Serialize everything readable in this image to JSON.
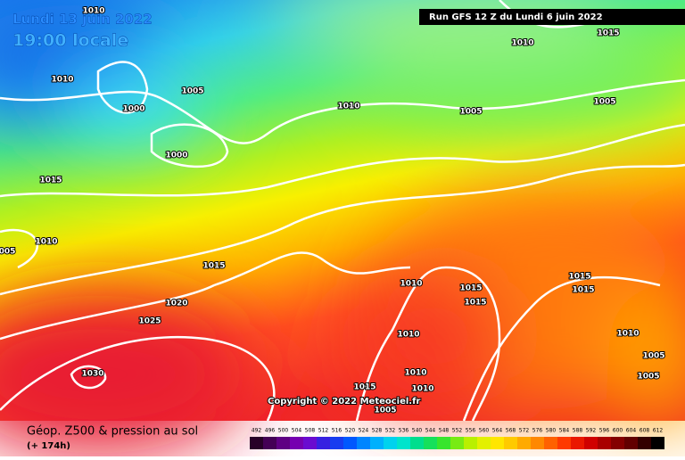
{
  "header": {
    "date": "Lundi 13 juin 2022",
    "time": "19:00 locale",
    "run": "Run GFS 12 Z du Lundi 6 juin 2022"
  },
  "isobar_labels": [
    "1010",
    "1015",
    "1010",
    "1010",
    "1005",
    "1000",
    "1010",
    "1005",
    "1005",
    "1000",
    "1015",
    "1010",
    "005",
    "1015",
    "1010",
    "1015",
    "1015",
    "1015",
    "1015",
    "1020",
    "1025",
    "1010",
    "1010",
    "1005",
    "1030",
    "1010",
    "1005",
    "1015",
    "1010",
    "1005"
  ],
  "copyright": "Copyright © 2022 Meteociel.fr",
  "footer": {
    "title": "Géop. Z500 & pression au sol",
    "lead": "(+ 174h)"
  },
  "scale": {
    "labels": [
      492,
      496,
      500,
      504,
      508,
      512,
      516,
      520,
      524,
      528,
      532,
      536,
      540,
      544,
      548,
      552,
      556,
      560,
      564,
      568,
      572,
      576,
      580,
      584,
      588,
      592,
      596,
      600,
      604,
      608,
      612
    ]
  }
}
